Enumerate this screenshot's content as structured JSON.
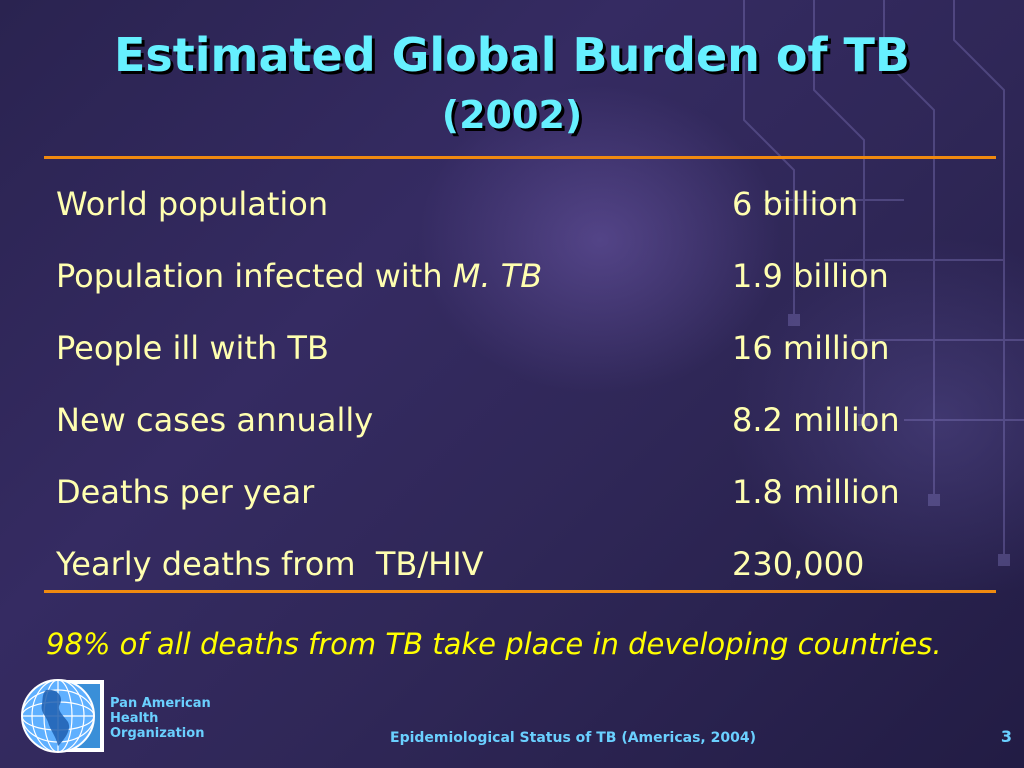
{
  "slide": {
    "title": "Estimated Global Burden of TB",
    "subtitle": "(2002)",
    "rows": [
      {
        "label": "World population",
        "value": "6 billion"
      },
      {
        "label": "Population infected with ",
        "label_italic": "M. TB",
        "value": "1.9 billion"
      },
      {
        "label": "People ill with TB",
        "value": "16 million"
      },
      {
        "label": "New cases annually",
        "value": "8.2 million"
      },
      {
        "label": "Deaths per year",
        "value": "1.8 million"
      },
      {
        "label": "Yearly deaths from  TB/HIV",
        "value": "230,000"
      }
    ],
    "footnote": "98% of all deaths from TB take place in developing countries."
  },
  "footer": {
    "org_line1": "Pan American",
    "org_line2": "Health",
    "org_line3": "Organization",
    "center_text": "Epidemiological Status of TB (Americas, 2004)",
    "page_number": "3"
  },
  "colors": {
    "title": "#66f0ff",
    "body_text": "#ffffb0",
    "footnote": "#ffff00",
    "rule": "#f08a10",
    "footer_text": "#6ad0ff"
  },
  "icons": {
    "logo": "globe-americas-icon"
  }
}
